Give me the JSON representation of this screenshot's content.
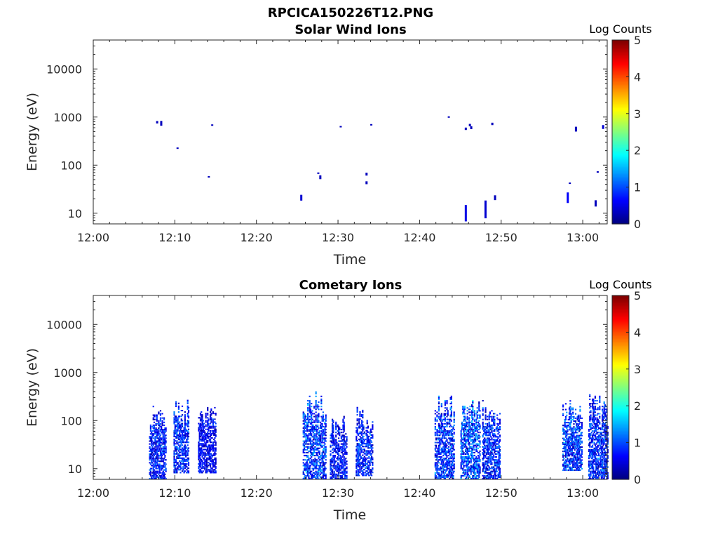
{
  "figure_title": "RPCICA150226T12.PNG",
  "chart_data": [
    {
      "type": "heatmap",
      "title": "Solar Wind Ions",
      "xlabel": "Time",
      "ylabel": "Energy (eV)",
      "x_ticks": [
        "12:00",
        "12:10",
        "12:20",
        "12:30",
        "12:40",
        "12:50",
        "13:00"
      ],
      "y_ticks": [
        "10",
        "100",
        "1000",
        "10000"
      ],
      "y_scale": "log",
      "xlim": [
        "12:00",
        "13:03"
      ],
      "ylim": [
        6,
        40000
      ],
      "colorbar": {
        "label": "Log Counts",
        "range": [
          0,
          5
        ],
        "ticks": [
          "0",
          "1",
          "2",
          "3",
          "4",
          "5"
        ],
        "colormap": "jet"
      },
      "points": [
        [
          "12:07:50",
          780,
          0.3,
          0.05
        ],
        [
          "12:08:20",
          740,
          0.3,
          0.1
        ],
        [
          "12:10:20",
          225,
          0.3,
          0.03
        ],
        [
          "12:14:10",
          57,
          0.3,
          0.03
        ],
        [
          "12:14:35",
          680,
          0.3,
          0.03
        ],
        [
          "12:25:30",
          21,
          0.4,
          0.12
        ],
        [
          "12:27:35",
          68,
          0.3,
          0.03
        ],
        [
          "12:27:50",
          56,
          0.3,
          0.08
        ],
        [
          "12:30:20",
          630,
          0.3,
          0.03
        ],
        [
          "12:33:30",
          65,
          0.3,
          0.06
        ],
        [
          "12:33:30",
          43,
          0.3,
          0.06
        ],
        [
          "12:34:05",
          690,
          0.3,
          0.03
        ],
        [
          "12:43:35",
          1000,
          0.3,
          0.03
        ],
        [
          "12:45:40",
          10,
          0.5,
          0.34
        ],
        [
          "12:45:40",
          570,
          0.3,
          0.05
        ],
        [
          "12:46:10",
          680,
          0.3,
          0.05
        ],
        [
          "12:46:20",
          600,
          0.3,
          0.06
        ],
        [
          "12:48:05",
          12,
          0.4,
          0.37
        ],
        [
          "12:48:55",
          720,
          0.3,
          0.05
        ],
        [
          "12:49:15",
          21,
          0.3,
          0.1
        ],
        [
          "12:58:10",
          21,
          0.6,
          0.22
        ],
        [
          "12:58:25",
          42,
          0.3,
          0.03
        ],
        [
          "12:59:10",
          560,
          0.3,
          0.1
        ],
        [
          "13:01:35",
          16,
          0.3,
          0.13
        ],
        [
          "13:01:50",
          72,
          0.3,
          0.03
        ],
        [
          "13:02:30",
          620,
          0.4,
          0.08
        ]
      ]
    },
    {
      "type": "heatmap",
      "title": "Cometary Ions",
      "xlabel": "Time",
      "ylabel": "Energy (eV)",
      "x_ticks": [
        "12:00",
        "12:10",
        "12:20",
        "12:30",
        "12:40",
        "12:50",
        "13:00"
      ],
      "y_ticks": [
        "10",
        "100",
        "1000",
        "10000"
      ],
      "y_scale": "log",
      "xlim": [
        "12:00",
        "13:03"
      ],
      "ylim": [
        6,
        40000
      ],
      "colorbar": {
        "label": "Log Counts",
        "range": [
          0,
          5
        ],
        "ticks": [
          "0",
          "1",
          "2",
          "3",
          "4",
          "5"
        ],
        "colormap": "jet"
      },
      "bursts": [
        {
          "start": "12:06:50",
          "end": "12:08:50",
          "elo": 6,
          "ehi": 200,
          "emax": 1.5
        },
        {
          "start": "12:09:50",
          "end": "12:11:40",
          "elo": 8,
          "ehi": 280,
          "emax": 1.6
        },
        {
          "start": "12:12:50",
          "end": "12:15:00",
          "elo": 8,
          "ehi": 200,
          "emax": 1.2
        },
        {
          "start": "12:25:40",
          "end": "12:28:30",
          "elo": 6,
          "ehi": 400,
          "emax": 1.8
        },
        {
          "start": "12:29:00",
          "end": "12:31:00",
          "elo": 6,
          "ehi": 130,
          "emax": 1.4
        },
        {
          "start": "12:32:10",
          "end": "12:34:10",
          "elo": 7,
          "ehi": 190,
          "emax": 1.5
        },
        {
          "start": "12:41:50",
          "end": "12:44:10",
          "elo": 6,
          "ehi": 390,
          "emax": 1.7
        },
        {
          "start": "12:45:00",
          "end": "12:47:20",
          "elo": 6,
          "ehi": 330,
          "emax": 2.0
        },
        {
          "start": "12:47:40",
          "end": "12:49:50",
          "elo": 6,
          "ehi": 300,
          "emax": 1.6
        },
        {
          "start": "12:57:30",
          "end": "12:59:50",
          "elo": 9,
          "ehi": 310,
          "emax": 1.8
        },
        {
          "start": "13:00:40",
          "end": "13:03:00",
          "elo": 6,
          "ehi": 340,
          "emax": 1.6
        }
      ]
    }
  ]
}
